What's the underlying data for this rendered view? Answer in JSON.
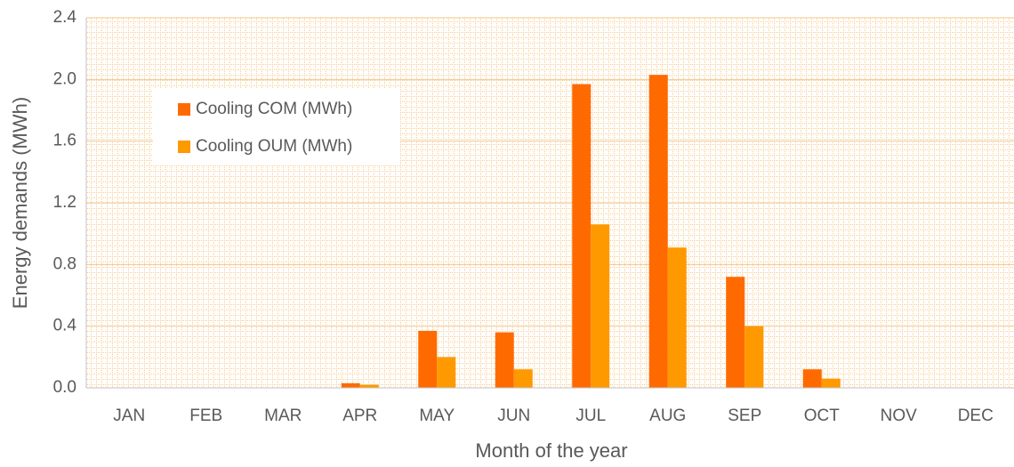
{
  "chart_data": {
    "type": "bar",
    "x_label": "Month of the year",
    "y_label": "Energy demands (MWh)",
    "categories": [
      "JAN",
      "FEB",
      "MAR",
      "APR",
      "MAY",
      "JUN",
      "JUL",
      "AUG",
      "SEP",
      "OCT",
      "NOV",
      "DEC"
    ],
    "series": [
      {
        "name": "Cooling COM (MWh)",
        "color": "#ff6a00",
        "values": [
          0,
          0,
          0,
          0.03,
          0.37,
          0.36,
          1.97,
          2.03,
          0.72,
          0.12,
          0,
          0
        ]
      },
      {
        "name": "Cooling OUM (MWh)",
        "color": "#ff9900",
        "values": [
          0,
          0,
          0,
          0.02,
          0.2,
          0.12,
          1.06,
          0.91,
          0.4,
          0.06,
          0,
          0
        ]
      }
    ],
    "ylim": [
      0,
      2.4
    ],
    "yticks": [
      {
        "value": 0,
        "label": "0.0"
      },
      0.4,
      0.8,
      1.2,
      1.6,
      {
        "value": 2,
        "label": "2.0"
      },
      2.4
    ],
    "grid": true
  }
}
